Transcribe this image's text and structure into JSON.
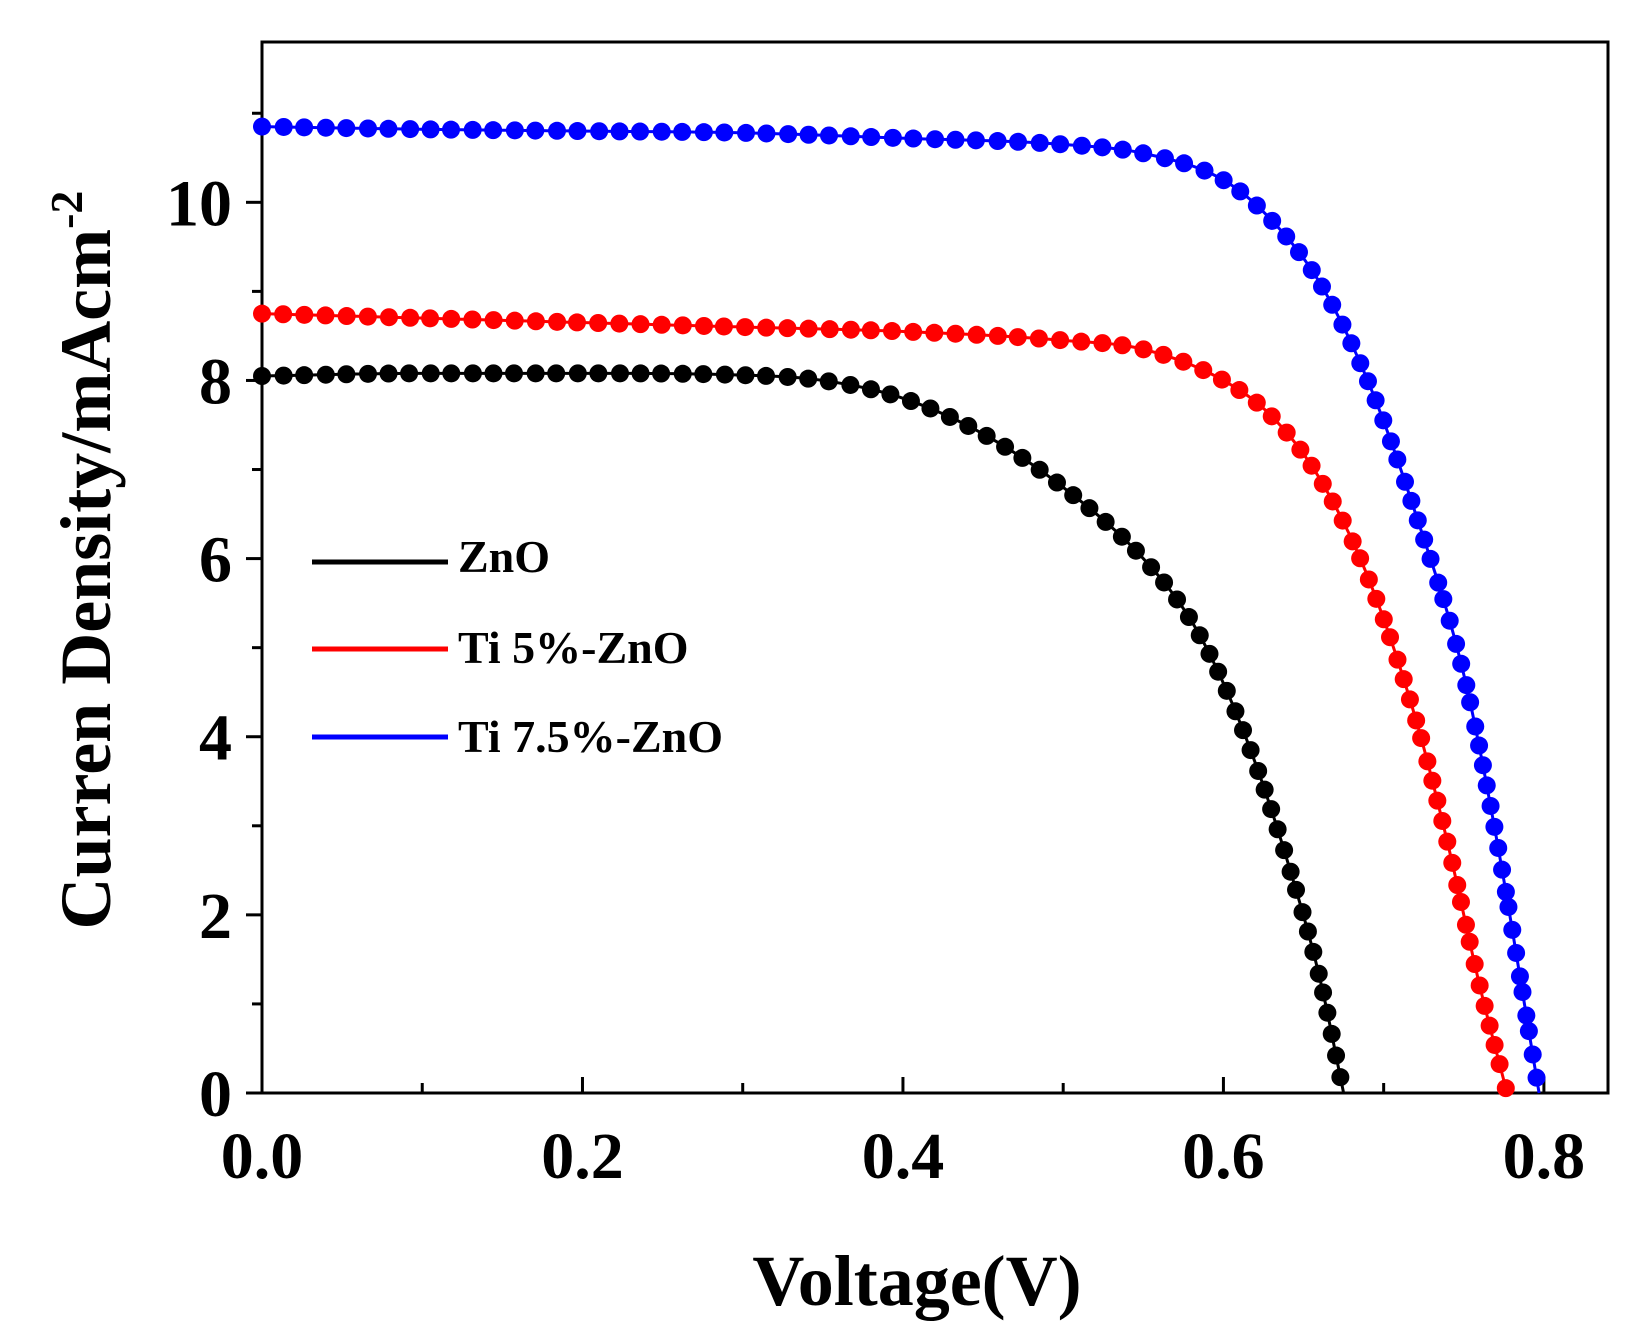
{
  "chart_data": {
    "type": "line",
    "title": "",
    "xlabel": "Voltage(V)",
    "ylabel": "Curren Density/mAcm",
    "ylabel_superscript": "-2",
    "xlim": [
      0,
      0.84
    ],
    "ylim": [
      0,
      11.8
    ],
    "xticks": [
      0,
      0.1,
      0.2,
      0.3,
      0.4,
      0.5,
      0.6,
      0.7,
      0.8
    ],
    "xtick_labels": [
      "0.0",
      "",
      "0.2",
      "",
      "0.4",
      "",
      "0.6",
      "",
      "0.8"
    ],
    "yticks": [
      0,
      1,
      2,
      3,
      4,
      5,
      6,
      7,
      8,
      9,
      10,
      11
    ],
    "ytick_labels": [
      "0",
      "",
      "2",
      "",
      "4",
      "",
      "6",
      "",
      "8",
      "",
      "10",
      ""
    ],
    "legend_position": "center-left",
    "series": [
      {
        "name": "ZnO",
        "color": "#000000",
        "x": [
          0,
          0.1,
          0.2,
          0.3,
          0.35,
          0.4,
          0.45,
          0.5,
          0.55,
          0.58,
          0.6,
          0.62,
          0.64,
          0.66,
          0.675
        ],
        "y": [
          8.05,
          8.08,
          8.08,
          8.06,
          8.0,
          7.8,
          7.4,
          6.8,
          6.0,
          5.3,
          4.6,
          3.7,
          2.6,
          1.3,
          0.0
        ]
      },
      {
        "name": "Ti 5%-ZnO",
        "color": "#ff0000",
        "x": [
          0,
          0.1,
          0.2,
          0.3,
          0.4,
          0.5,
          0.55,
          0.6,
          0.63,
          0.66,
          0.69,
          0.72,
          0.74,
          0.76,
          0.777
        ],
        "y": [
          8.75,
          8.7,
          8.65,
          8.6,
          8.55,
          8.45,
          8.35,
          8.0,
          7.6,
          6.9,
          5.8,
          4.2,
          2.8,
          1.2,
          0.0
        ]
      },
      {
        "name": "Ti 7.5%-ZnO",
        "color": "#0000ff",
        "x": [
          0,
          0.1,
          0.2,
          0.3,
          0.4,
          0.5,
          0.55,
          0.6,
          0.63,
          0.66,
          0.69,
          0.72,
          0.75,
          0.77,
          0.797
        ],
        "y": [
          10.85,
          10.82,
          10.8,
          10.78,
          10.72,
          10.65,
          10.55,
          10.25,
          9.8,
          9.1,
          8.0,
          6.5,
          4.7,
          2.9,
          0.0
        ]
      }
    ]
  }
}
